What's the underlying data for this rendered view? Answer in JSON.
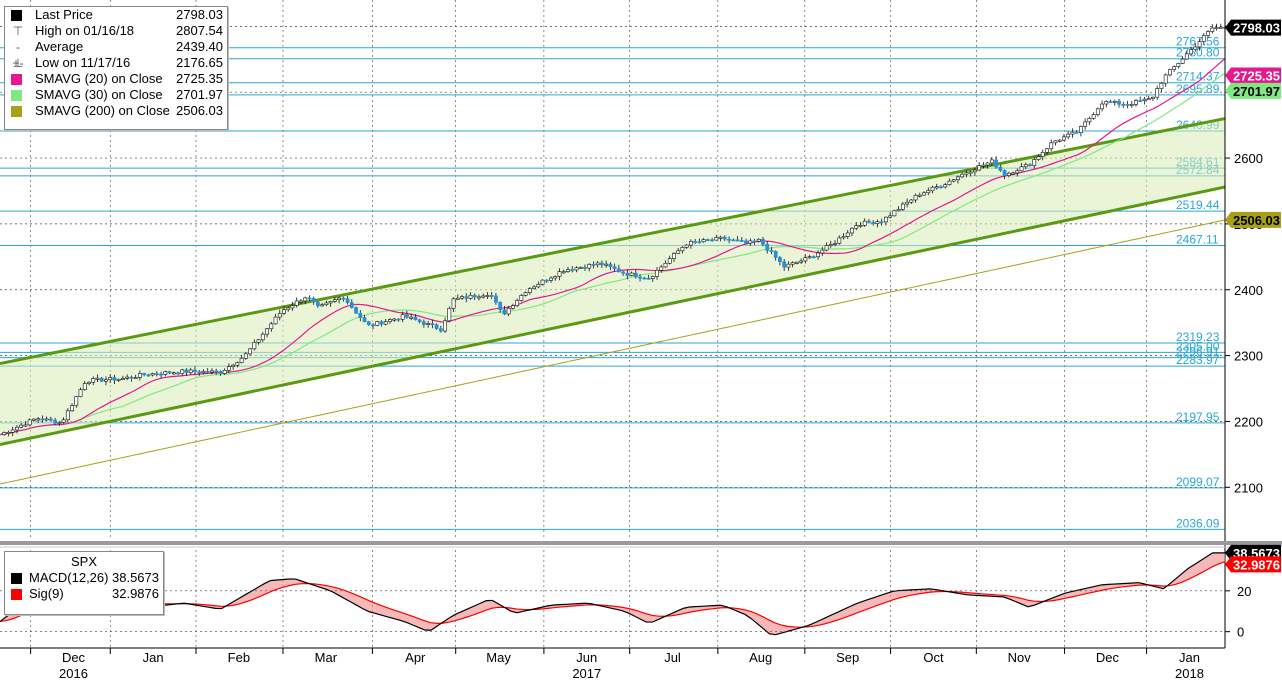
{
  "legend": {
    "last_price": {
      "label": "Last Price",
      "value": "2798.03",
      "color": "#000000"
    },
    "high": {
      "label": "High on 01/16/18",
      "value": "2807.54",
      "glyph": "⊤"
    },
    "average": {
      "label": "Average",
      "value": "2439.40",
      "glyph": "-+-"
    },
    "low": {
      "label": "Low on 11/17/16",
      "value": "2176.65",
      "glyph": "⊥"
    },
    "sma20": {
      "label": "SMAVG (20) on Close",
      "value": "2725.35",
      "color": "#e6178f"
    },
    "sma30": {
      "label": "SMAVG (30) on Close",
      "value": "2701.97",
      "color": "#80e880"
    },
    "sma200": {
      "label": "SMAVG (200) on Close",
      "value": "2506.03",
      "color": "#a9a018"
    }
  },
  "macd_legend": {
    "title": "SPX",
    "macd": {
      "label": "MACD(12,26)",
      "value": "38.5673",
      "color": "#000000"
    },
    "sig": {
      "label": "Sig(9)",
      "value": "32.9876",
      "color": "#ff0000"
    }
  },
  "chart_data": {
    "type": "line",
    "price_axis": {
      "ylim": [
        2020,
        2840
      ],
      "ticks": [
        2100,
        2200,
        2300,
        2400,
        2500,
        2600,
        2700,
        2800
      ]
    },
    "macd_axis": {
      "ylim": [
        -8,
        40
      ],
      "ticks": [
        0,
        20
      ]
    },
    "month_labels": [
      {
        "label": "Dec",
        "year": "2016",
        "t": 0.06
      },
      {
        "label": "Jan",
        "year": "",
        "t": 0.125
      },
      {
        "label": "Feb",
        "year": "",
        "t": 0.195
      },
      {
        "label": "Mar",
        "year": "",
        "t": 0.266
      },
      {
        "label": "Apr",
        "year": "",
        "t": 0.339
      },
      {
        "label": "May",
        "year": "",
        "t": 0.407
      },
      {
        "label": "Jun",
        "year": "2017",
        "t": 0.479
      },
      {
        "label": "Jul",
        "year": "",
        "t": 0.549
      },
      {
        "label": "Aug",
        "year": "",
        "t": 0.621
      },
      {
        "label": "Sep",
        "year": "",
        "t": 0.692
      },
      {
        "label": "Oct",
        "year": "",
        "t": 0.762
      },
      {
        "label": "Nov",
        "year": "",
        "t": 0.832
      },
      {
        "label": "Dec",
        "year": "",
        "t": 0.904
      },
      {
        "label": "Jan",
        "year": "2018",
        "t": 0.971
      }
    ],
    "level_lines": [
      {
        "value": 2767.56,
        "label": "2767.56"
      },
      {
        "value": 2750.8,
        "label": "2750.80"
      },
      {
        "value": 2714.37,
        "label": "2714.37"
      },
      {
        "value": 2695.89,
        "label": "2695.89"
      },
      {
        "value": 2640.99,
        "label": "2640.99"
      },
      {
        "value": 2584.61,
        "label": "2584.61"
      },
      {
        "value": 2572.84,
        "label": "2572.84"
      },
      {
        "value": 2519.44,
        "label": "2519.44"
      },
      {
        "value": 2467.11,
        "label": "2467.11"
      },
      {
        "value": 2319.23,
        "label": "2319.23"
      },
      {
        "value": 2305.0,
        "label": "2305.00"
      },
      {
        "value": 2296.91,
        "label": "2296.91"
      },
      {
        "value": 2283.97,
        "label": "2283.97"
      },
      {
        "value": 2197.95,
        "label": "2197.95"
      },
      {
        "value": 2099.07,
        "label": "2099.07"
      },
      {
        "value": 2036.09,
        "label": "2036.09"
      }
    ],
    "channel": {
      "upper": [
        [
          0,
          2288
        ],
        [
          1,
          2660
        ]
      ],
      "lower": [
        [
          0,
          2165
        ],
        [
          1,
          2556
        ]
      ]
    },
    "price_tags": [
      {
        "value": 2798.03,
        "label": "2798.03",
        "bg": "#000000",
        "fg": "#ffffff"
      },
      {
        "value": 2725.35,
        "label": "2725.35",
        "bg": "#e6178f",
        "fg": "#ffffff"
      },
      {
        "value": 2701.97,
        "label": "2701.97",
        "bg": "#80e880",
        "fg": "#000000"
      },
      {
        "value": 2506.03,
        "label": "2506.03",
        "bg": "#a9a018",
        "fg": "#000000"
      }
    ],
    "macd_tags": [
      {
        "value": 38.5673,
        "label": "38.5673",
        "bg": "#000000",
        "fg": "#ffffff"
      },
      {
        "value": 32.9876,
        "label": "32.9876",
        "bg": "#ff0000",
        "fg": "#ffffff"
      }
    ],
    "price_anchors": [
      [
        0.0,
        2180
      ],
      [
        0.03,
        2205
      ],
      [
        0.05,
        2198
      ],
      [
        0.07,
        2262
      ],
      [
        0.1,
        2265
      ],
      [
        0.12,
        2272
      ],
      [
        0.15,
        2276
      ],
      [
        0.18,
        2275
      ],
      [
        0.2,
        2300
      ],
      [
        0.23,
        2368
      ],
      [
        0.25,
        2390
      ],
      [
        0.26,
        2372
      ],
      [
        0.28,
        2390
      ],
      [
        0.3,
        2345
      ],
      [
        0.33,
        2360
      ],
      [
        0.36,
        2340
      ],
      [
        0.37,
        2385
      ],
      [
        0.4,
        2395
      ],
      [
        0.41,
        2362
      ],
      [
        0.43,
        2400
      ],
      [
        0.46,
        2430
      ],
      [
        0.49,
        2440
      ],
      [
        0.51,
        2425
      ],
      [
        0.53,
        2418
      ],
      [
        0.56,
        2470
      ],
      [
        0.59,
        2478
      ],
      [
        0.61,
        2470
      ],
      [
        0.62,
        2475
      ],
      [
        0.64,
        2435
      ],
      [
        0.66,
        2448
      ],
      [
        0.68,
        2470
      ],
      [
        0.7,
        2500
      ],
      [
        0.72,
        2505
      ],
      [
        0.75,
        2545
      ],
      [
        0.77,
        2560
      ],
      [
        0.79,
        2580
      ],
      [
        0.81,
        2595
      ],
      [
        0.82,
        2575
      ],
      [
        0.84,
        2590
      ],
      [
        0.86,
        2625
      ],
      [
        0.88,
        2640
      ],
      [
        0.9,
        2685
      ],
      [
        0.92,
        2682
      ],
      [
        0.94,
        2690
      ],
      [
        0.95,
        2722
      ],
      [
        0.97,
        2760
      ],
      [
        0.99,
        2798
      ]
    ],
    "macd_anchors": [
      [
        0.0,
        5
      ],
      [
        0.02,
        14
      ],
      [
        0.06,
        24
      ],
      [
        0.09,
        16
      ],
      [
        0.12,
        12
      ],
      [
        0.15,
        14
      ],
      [
        0.18,
        11
      ],
      [
        0.2,
        18
      ],
      [
        0.22,
        25
      ],
      [
        0.24,
        26
      ],
      [
        0.27,
        20
      ],
      [
        0.3,
        10
      ],
      [
        0.33,
        5
      ],
      [
        0.35,
        0
      ],
      [
        0.37,
        8
      ],
      [
        0.4,
        16
      ],
      [
        0.42,
        9
      ],
      [
        0.45,
        13
      ],
      [
        0.48,
        14
      ],
      [
        0.51,
        10
      ],
      [
        0.53,
        4
      ],
      [
        0.56,
        12
      ],
      [
        0.59,
        13
      ],
      [
        0.61,
        8
      ],
      [
        0.63,
        -2
      ],
      [
        0.66,
        3
      ],
      [
        0.7,
        14
      ],
      [
        0.73,
        20
      ],
      [
        0.76,
        21
      ],
      [
        0.79,
        18
      ],
      [
        0.82,
        17
      ],
      [
        0.84,
        12
      ],
      [
        0.87,
        19
      ],
      [
        0.9,
        23
      ],
      [
        0.93,
        24
      ],
      [
        0.95,
        21
      ],
      [
        0.97,
        31
      ],
      [
        0.99,
        38.6
      ]
    ]
  }
}
